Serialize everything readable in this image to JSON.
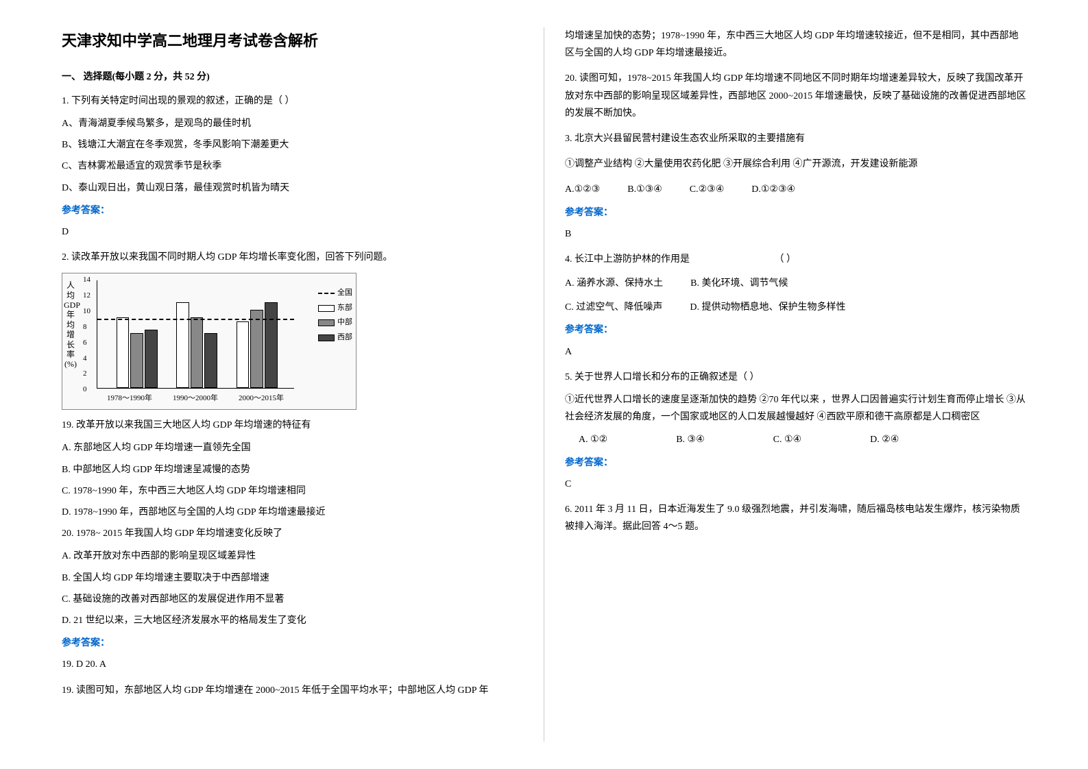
{
  "title": "天津求知中学高二地理月考试卷含解析",
  "section1": {
    "heading": "一、 选择题(每小题 2 分，共 52 分)"
  },
  "q1": {
    "stem": "1. 下列有关特定时间出现的景观的叙述，正确的是（  ）",
    "optA": "A、青海湖夏季候鸟繁多，是观鸟的最佳时机",
    "optB": "B、钱塘江大潮宜在冬季观赏，冬季风影响下潮差更大",
    "optC": "C、吉林雾凇最适宜的观赏季节是秋季",
    "optD": "D、泰山观日出，黄山观日落，最佳观赏时机皆为晴天",
    "answerLabel": "参考答案：",
    "answer": "D"
  },
  "q2": {
    "stem": "2. 读改革开放以来我国不同时期人均 GDP 年均增长率变化图，回答下列问题。",
    "chart": {
      "type": "bar",
      "ylabel": "人均GDP年均增长率(%)",
      "ylim": [
        0,
        14
      ],
      "ytick_step": 2,
      "yticks": [
        0,
        2,
        4,
        6,
        8,
        10,
        12,
        14
      ],
      "categories": [
        "1978～1990年",
        "1990～2000年",
        "2000～2015年"
      ],
      "series": [
        {
          "name": "全国",
          "style": "dashed-line",
          "values": [
            8,
            9,
            9
          ]
        },
        {
          "name": "东部",
          "pattern": "white",
          "values": [
            9,
            11,
            8.5
          ]
        },
        {
          "name": "中部",
          "pattern": "dots",
          "values": [
            7,
            9,
            10
          ]
        },
        {
          "name": "西部",
          "pattern": "lines",
          "values": [
            7.5,
            7,
            11
          ]
        }
      ],
      "bar_colors": {
        "white": "#ffffff",
        "dots": "#888888",
        "lines": "#444444"
      },
      "background_color": "#f9f9f9",
      "grid_color": "#888888"
    },
    "q19": {
      "stem": "19.  改革开放以来我国三大地区人均 GDP 年均增速的特征有",
      "optA": "A.  东部地区人均 GDP 年均增速一直领先全国",
      "optB": "B.  中部地区人均 GDP 年均增速呈减慢的态势",
      "optC": "C.  1978~1990 年，东中西三大地区人均 GDP 年均增速相同",
      "optD": "D.  1978~1990 年，西部地区与全国的人均 GDP 年均增速最接近"
    },
    "q20": {
      "stem": "20.  1978~ 2015 年我国人均 GDP 年均增速变化反映了",
      "optA": "A.  改革开放对东中西部的影响呈现区域差异性",
      "optB": "B.  全国人均 GDP 年均增速主要取决于中西部增速",
      "optC": "C.  基础设施的改善对西部地区的发展促进作用不显著",
      "optD": "D.  21 世纪以来，三大地区经济发展水平的格局发生了变化"
    },
    "answerLabel": "参考答案：",
    "answer": "19.  D           20.  A",
    "explain19": "19.  读图可知，东部地区人均 GDP 年均增速在 2000~2015 年低于全国平均水平；中部地区人均 GDP 年"
  },
  "col2_continue": {
    "line1": "均增速呈加快的态势；1978~1990 年，东中西三大地区人均 GDP 年均增速较接近，但不是相同，其中西部地区与全国的人均 GDP 年均增速最接近。",
    "line2": "20.  读图可知，1978~2015 年我国人均 GDP 年均增速不同地区不同时期年均增速差异较大，反映了我国改革开放对东中西部的影响呈现区域差异性，西部地区 2000~2015 年增速最快，反映了基础设施的改善促进西部地区的发展不断加快。"
  },
  "q3": {
    "stem": "3. 北京大兴县留民营村建设生态农业所采取的主要措施有",
    "subopts": "①调整产业结构  ②大量使用农药化肥  ③开展综合利用  ④广开源流，开发建设新能源",
    "optA": "A.①②③",
    "optB": "B.①③④",
    "optC": "C.②③④",
    "optD": "D.①②③④",
    "answerLabel": "参考答案：",
    "answer": "B"
  },
  "q4": {
    "stem": "4. 长江中上游防护林的作用是",
    "blank": "（   ）",
    "optA": "A.  涵养水源、保持水土",
    "optB": "B.  美化环境、调节气候",
    "optC": "C.  过滤空气、降低噪声",
    "optD": "D.  提供动物栖息地、保护生物多样性",
    "answerLabel": "参考答案：",
    "answer": "A"
  },
  "q5": {
    "stem": "5. 关于世界人口增长和分布的正确叙述是（           ）",
    "body": "    ①近代世界人口增长的速度呈逐渐加快的趋势      ②70 年代以来  ，世界人口因普遍实行计划生育而停止增长      ③从社会经济发展的角度，一个国家或地区的人口发展越慢越好        ④西欧平原和德干高原都是人口稠密区",
    "optA": "A. ①②",
    "optB": "B. ③④",
    "optC": "C. ①④",
    "optD": "D. ②④",
    "answerLabel": "参考答案：",
    "answer": "C"
  },
  "q6": {
    "stem": "6.  2011 年 3 月 11 日，日本近海发生了 9.0 级强烈地震，并引发海啸，随后福岛核电站发生爆炸，核污染物质被排入海洋。据此回答 4～5 题。"
  }
}
